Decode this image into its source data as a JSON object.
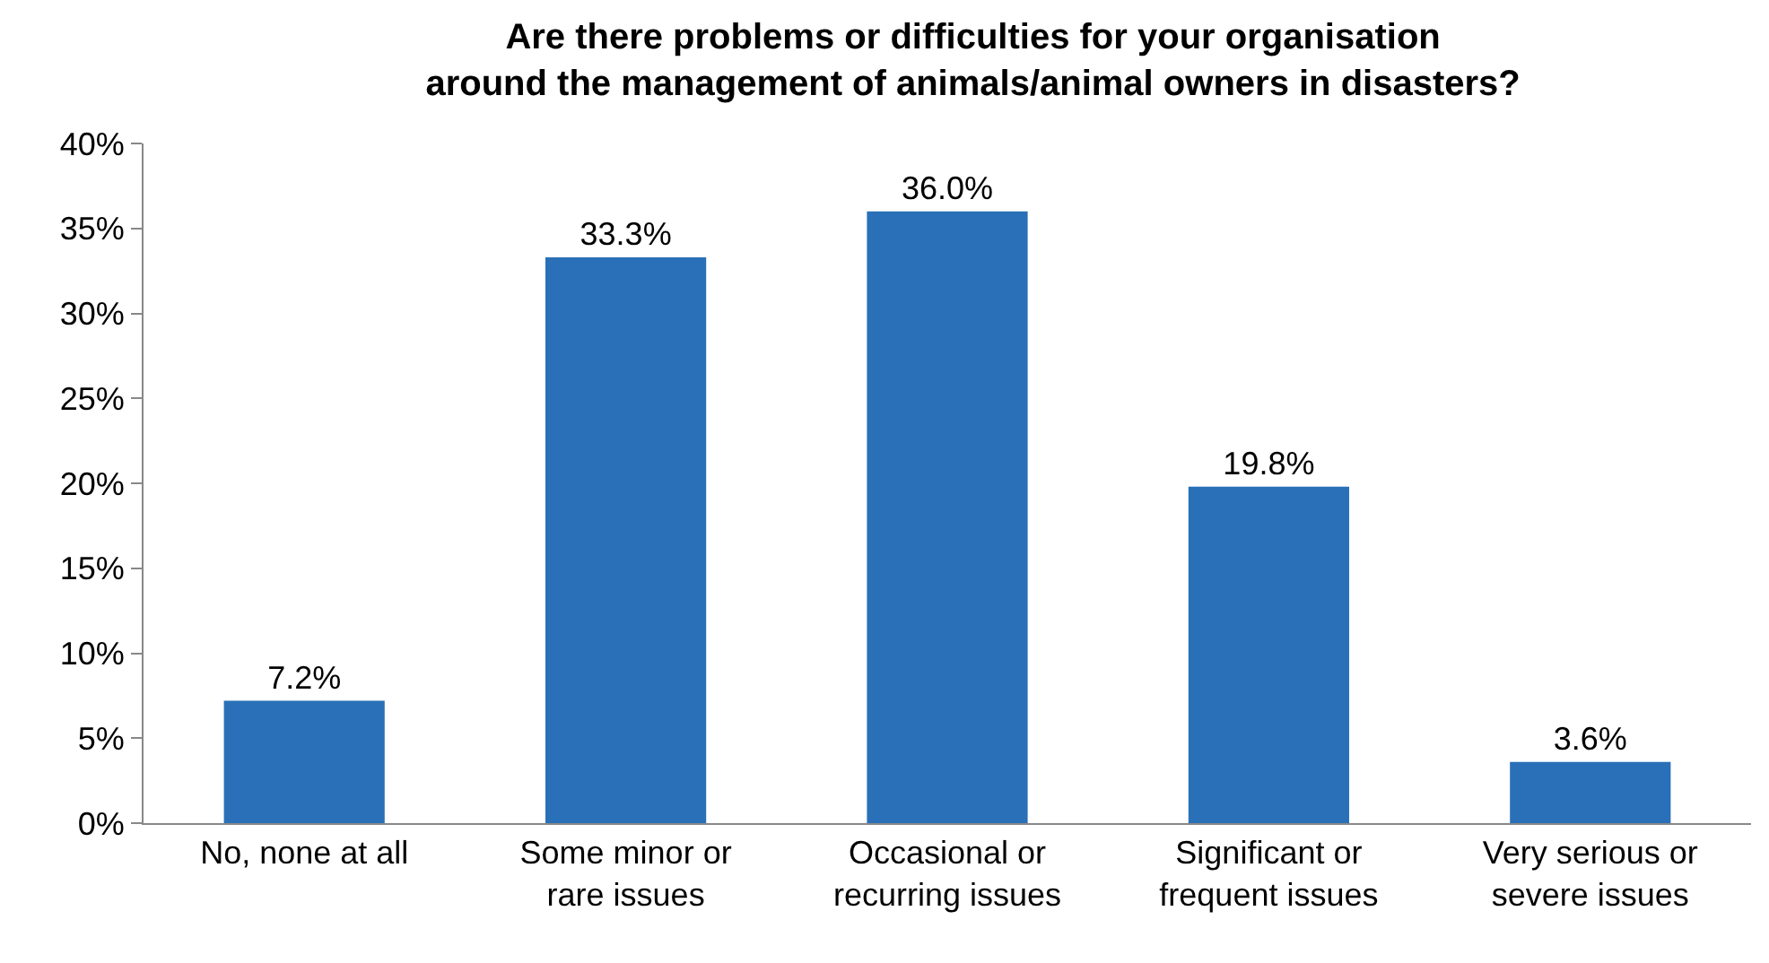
{
  "chart_data": {
    "type": "bar",
    "title": "Are there problems or difficulties for your organisation around the management of animals/animal owners in disasters?",
    "categories": [
      "No, none at all",
      "Some minor or rare issues",
      "Occasional or recurring issues",
      "Significant or frequent issues",
      "Very serious or severe issues"
    ],
    "values": [
      7.2,
      33.3,
      36.0,
      19.8,
      3.6
    ],
    "value_labels": [
      "7.2%",
      "33.3%",
      "36.0%",
      "19.8%",
      "3.6%"
    ],
    "color": "#2a70b8",
    "ylim": [
      0,
      40
    ],
    "yticks": [
      {
        "value": 0,
        "label": "0%"
      },
      {
        "value": 5,
        "label": "5%"
      },
      {
        "value": 10,
        "label": "10%"
      },
      {
        "value": 15,
        "label": "15%"
      },
      {
        "value": 20,
        "label": "20%"
      },
      {
        "value": 25,
        "label": "25%"
      },
      {
        "value": 30,
        "label": "30%"
      },
      {
        "value": 35,
        "label": "35%"
      },
      {
        "value": 40,
        "label": "40%"
      }
    ],
    "grid": false,
    "legend": false
  }
}
